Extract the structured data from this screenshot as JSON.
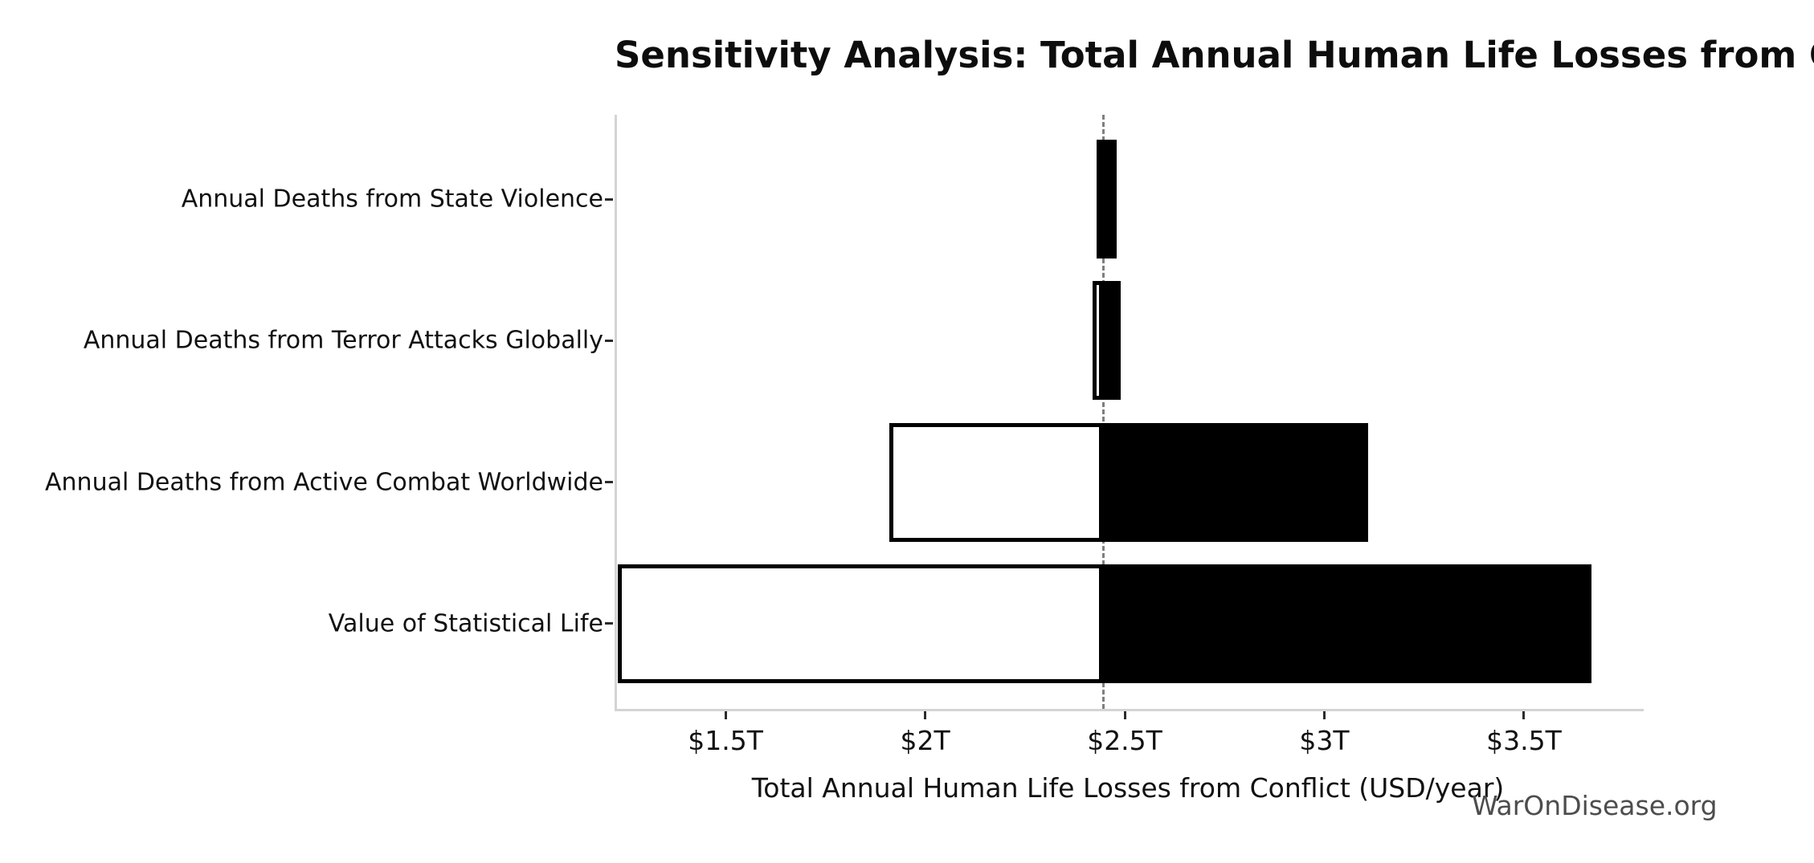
{
  "chart_data": {
    "type": "bar",
    "variant": "tornado-sensitivity",
    "orientation": "horizontal",
    "title": "Sensitivity Analysis: Total Annual Human Life Losses from Conflict",
    "xlabel": "Total Annual Human Life Losses from Conflict (USD/year)",
    "watermark": "WarOnDisease.org",
    "grid": false,
    "legend": false,
    "xlim": [
      1.222,
      3.794
    ],
    "baseline": 2.446,
    "xticks": [
      {
        "value": 1.5,
        "label": "$1.5T"
      },
      {
        "value": 2.0,
        "label": "$2T"
      },
      {
        "value": 2.5,
        "label": "$2.5T"
      },
      {
        "value": 3.0,
        "label": "$3T"
      },
      {
        "value": 3.5,
        "label": "$3.5T"
      }
    ],
    "categories": [
      "Annual Deaths from State Violence",
      "Annual Deaths from Terror Attacks Globally",
      "Annual Deaths from Active Combat Worldwide",
      "Value of Statistical Life"
    ],
    "series": [
      {
        "name": "low",
        "values": [
          2.43,
          2.42,
          1.91,
          1.23
        ]
      },
      {
        "name": "high",
        "values": [
          2.48,
          2.49,
          3.11,
          3.67
        ]
      }
    ],
    "colors": {
      "low_fill": "#ffffff",
      "high_fill": "#000000",
      "bar_edge": "#000000",
      "baseline_line": "#7f7f7f",
      "spine": "#d4d4d4",
      "text": "#111111",
      "watermark": "#4d4d4d"
    }
  }
}
